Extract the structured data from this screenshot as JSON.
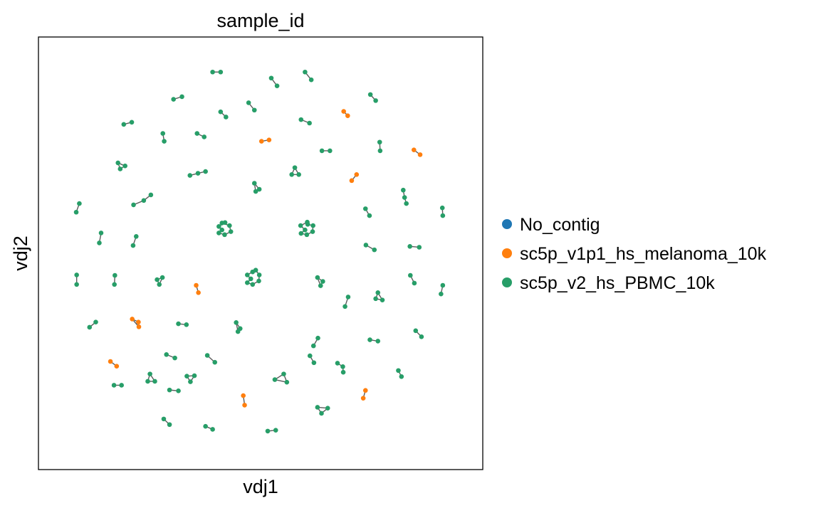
{
  "chart_data": {
    "type": "scatter",
    "title": "sample_id",
    "xlabel": "vdj1",
    "ylabel": "vdj2",
    "xlim": [
      0,
      100
    ],
    "ylim": [
      0,
      100
    ],
    "grid": false,
    "ticks": "none",
    "legend_placement": "right",
    "legend": [
      {
        "name": "No_contig",
        "color": "#1f77b4"
      },
      {
        "name": "sc5p_v1p1_hs_melanoma_10k",
        "color": "#ff7f0e"
      },
      {
        "name": "sc5p_v2_hs_PBMC_10k",
        "color": "#279e68"
      }
    ],
    "series": [
      {
        "name": "No_contig",
        "color": "#1f77b4",
        "points": []
      },
      {
        "name": "sc5p_v1p1_hs_melanoma_10k",
        "color": "#ff7f0e",
        "points": [
          [
            68.7,
            82.8
          ],
          [
            69.6,
            81.8
          ],
          [
            50.2,
            75.9
          ],
          [
            51.9,
            76.2
          ],
          [
            71.6,
            68.2
          ],
          [
            70.5,
            66.8
          ],
          [
            84.5,
            73.9
          ],
          [
            85.9,
            72.8
          ],
          [
            35.5,
            42.6
          ],
          [
            36.0,
            40.9
          ],
          [
            21.1,
            34.8
          ],
          [
            22.5,
            34.1
          ],
          [
            22.6,
            33.0
          ],
          [
            16.2,
            25.0
          ],
          [
            17.6,
            23.9
          ],
          [
            46.1,
            17.1
          ],
          [
            46.4,
            14.9
          ],
          [
            73.6,
            18.3
          ],
          [
            73.1,
            16.5
          ]
        ]
      },
      {
        "name": "sc5p_v2_hs_PBMC_10k",
        "color": "#279e68",
        "points": [
          [
            39.2,
            91.9
          ],
          [
            41.0,
            91.9
          ],
          [
            52.4,
            90.5
          ],
          [
            53.7,
            88.7
          ],
          [
            60.0,
            91.9
          ],
          [
            61.4,
            90.1
          ],
          [
            30.4,
            85.6
          ],
          [
            32.3,
            86.2
          ],
          [
            47.3,
            84.8
          ],
          [
            48.6,
            83.1
          ],
          [
            41.0,
            82.7
          ],
          [
            42.2,
            81.5
          ],
          [
            59.1,
            80.9
          ],
          [
            61.0,
            80.1
          ],
          [
            74.7,
            86.7
          ],
          [
            75.9,
            85.3
          ],
          [
            19.2,
            79.8
          ],
          [
            21.0,
            80.3
          ],
          [
            28.0,
            77.7
          ],
          [
            28.3,
            75.9
          ],
          [
            35.7,
            77.7
          ],
          [
            37.3,
            76.9
          ],
          [
            63.8,
            73.7
          ],
          [
            65.6,
            73.7
          ],
          [
            76.8,
            75.7
          ],
          [
            76.9,
            73.7
          ],
          [
            17.9,
            70.9
          ],
          [
            18.4,
            69.5
          ],
          [
            19.5,
            70.2
          ],
          [
            34.1,
            68.0
          ],
          [
            35.9,
            68.5
          ],
          [
            37.6,
            68.9
          ],
          [
            57.7,
            69.8
          ],
          [
            57.0,
            68.2
          ],
          [
            58.6,
            68.2
          ],
          [
            48.6,
            66.2
          ],
          [
            49.7,
            64.8
          ],
          [
            48.9,
            64.3
          ],
          [
            82.1,
            64.6
          ],
          [
            82.4,
            62.9
          ],
          [
            82.8,
            61.5
          ],
          [
            21.4,
            61.2
          ],
          [
            23.7,
            62.2
          ],
          [
            25.3,
            63.5
          ],
          [
            9.2,
            61.5
          ],
          [
            8.5,
            59.5
          ],
          [
            73.6,
            60.3
          ],
          [
            74.5,
            58.7
          ],
          [
            90.9,
            60.5
          ],
          [
            91.0,
            58.7
          ],
          [
            14.1,
            54.7
          ],
          [
            13.7,
            52.4
          ],
          [
            22.0,
            53.9
          ],
          [
            21.3,
            51.8
          ],
          [
            73.7,
            51.9
          ],
          [
            75.6,
            50.8
          ],
          [
            83.6,
            51.6
          ],
          [
            85.7,
            51.4
          ],
          [
            8.6,
            45.0
          ],
          [
            8.6,
            42.8
          ],
          [
            17.2,
            44.9
          ],
          [
            17.1,
            42.8
          ],
          [
            26.7,
            43.9
          ],
          [
            27.9,
            44.4
          ],
          [
            27.2,
            42.8
          ],
          [
            62.8,
            44.4
          ],
          [
            64.0,
            43.5
          ],
          [
            63.5,
            42.5
          ],
          [
            69.7,
            39.9
          ],
          [
            69.0,
            37.7
          ],
          [
            76.4,
            40.9
          ],
          [
            75.9,
            39.5
          ],
          [
            77.4,
            39.2
          ],
          [
            83.7,
            44.9
          ],
          [
            84.6,
            43.1
          ],
          [
            91.0,
            42.6
          ],
          [
            90.6,
            40.6
          ],
          [
            11.5,
            32.9
          ],
          [
            12.9,
            34.1
          ],
          [
            31.5,
            33.7
          ],
          [
            33.3,
            33.5
          ],
          [
            44.5,
            34.0
          ],
          [
            45.4,
            32.6
          ],
          [
            44.9,
            31.9
          ],
          [
            62.9,
            30.4
          ],
          [
            61.9,
            28.6
          ],
          [
            74.6,
            30.0
          ],
          [
            76.4,
            29.7
          ],
          [
            84.9,
            32.1
          ],
          [
            86.2,
            30.7
          ],
          [
            28.8,
            26.6
          ],
          [
            30.7,
            25.8
          ],
          [
            38.0,
            26.4
          ],
          [
            39.7,
            24.8
          ],
          [
            61.1,
            26.3
          ],
          [
            62.0,
            24.7
          ],
          [
            67.3,
            24.6
          ],
          [
            68.5,
            23.8
          ],
          [
            68.6,
            22.5
          ],
          [
            81.0,
            22.9
          ],
          [
            81.7,
            21.5
          ],
          [
            25.1,
            22.1
          ],
          [
            24.6,
            20.4
          ],
          [
            26.2,
            20.4
          ],
          [
            33.4,
            21.6
          ],
          [
            34.2,
            20.3
          ],
          [
            35.1,
            21.7
          ],
          [
            55.2,
            22.1
          ],
          [
            53.2,
            20.8
          ],
          [
            55.9,
            20.2
          ],
          [
            17.0,
            19.5
          ],
          [
            18.7,
            19.5
          ],
          [
            29.5,
            18.4
          ],
          [
            31.5,
            18.2
          ],
          [
            62.8,
            14.4
          ],
          [
            63.7,
            13.0
          ],
          [
            65.1,
            14.2
          ],
          [
            28.2,
            11.7
          ],
          [
            29.5,
            10.4
          ],
          [
            37.6,
            10.0
          ],
          [
            39.2,
            9.3
          ],
          [
            51.6,
            8.9
          ],
          [
            53.4,
            9.1
          ],
          [
            42.0,
            57.1
          ],
          [
            40.6,
            56.2
          ],
          [
            41.3,
            55.4
          ],
          [
            40.6,
            54.7
          ],
          [
            41.9,
            54.3
          ],
          [
            43.3,
            55.0
          ],
          [
            43.0,
            56.4
          ],
          [
            41.3,
            57.0
          ],
          [
            60.5,
            57.2
          ],
          [
            59.0,
            56.4
          ],
          [
            60.0,
            55.4
          ],
          [
            59.1,
            54.6
          ],
          [
            60.4,
            54.3
          ],
          [
            61.7,
            55.0
          ],
          [
            61.8,
            56.4
          ],
          [
            60.6,
            56.7
          ],
          [
            48.2,
            45.7
          ],
          [
            47.0,
            45.0
          ],
          [
            47.8,
            44.1
          ],
          [
            47.0,
            43.2
          ],
          [
            48.2,
            42.8
          ],
          [
            49.6,
            43.6
          ],
          [
            49.7,
            45.0
          ],
          [
            48.9,
            46.1
          ]
        ]
      }
    ],
    "edges": [
      [
        39.2,
        91.9,
        41.0,
        91.9
      ],
      [
        52.4,
        90.5,
        53.7,
        88.7
      ],
      [
        60.0,
        91.9,
        61.4,
        90.1
      ],
      [
        30.4,
        85.6,
        32.3,
        86.2
      ],
      [
        47.3,
        84.8,
        48.6,
        83.1
      ],
      [
        41.0,
        82.7,
        42.2,
        81.5
      ],
      [
        59.1,
        80.9,
        61.0,
        80.1
      ],
      [
        74.7,
        86.7,
        75.9,
        85.3
      ],
      [
        19.2,
        79.8,
        21.0,
        80.3
      ],
      [
        28.0,
        77.7,
        28.3,
        75.9
      ],
      [
        35.7,
        77.7,
        37.3,
        76.9
      ],
      [
        63.8,
        73.7,
        65.6,
        73.7
      ],
      [
        76.8,
        75.7,
        76.9,
        73.7
      ],
      [
        68.7,
        82.8,
        69.6,
        81.8
      ],
      [
        50.2,
        75.9,
        51.9,
        76.2
      ],
      [
        71.6,
        68.2,
        70.5,
        66.8
      ],
      [
        84.5,
        73.9,
        85.9,
        72.8
      ],
      [
        17.9,
        70.9,
        18.4,
        69.5
      ],
      [
        18.4,
        69.5,
        19.5,
        70.2
      ],
      [
        19.5,
        70.2,
        17.9,
        70.9
      ],
      [
        34.1,
        68.0,
        35.9,
        68.5
      ],
      [
        35.9,
        68.5,
        37.6,
        68.9
      ],
      [
        57.7,
        69.8,
        57.0,
        68.2
      ],
      [
        57.0,
        68.2,
        58.6,
        68.2
      ],
      [
        58.6,
        68.2,
        57.7,
        69.8
      ],
      [
        48.6,
        66.2,
        48.9,
        64.3
      ],
      [
        48.9,
        64.3,
        49.7,
        64.8
      ],
      [
        49.7,
        64.8,
        48.6,
        66.2
      ],
      [
        82.1,
        64.6,
        82.4,
        62.9
      ],
      [
        82.4,
        62.9,
        82.8,
        61.5
      ],
      [
        21.4,
        61.2,
        23.7,
        62.2
      ],
      [
        23.7,
        62.2,
        25.3,
        63.5
      ],
      [
        9.2,
        61.5,
        8.5,
        59.5
      ],
      [
        73.6,
        60.3,
        74.5,
        58.7
      ],
      [
        90.9,
        60.5,
        91.0,
        58.7
      ],
      [
        14.1,
        54.7,
        13.7,
        52.4
      ],
      [
        22.0,
        53.9,
        21.3,
        51.8
      ],
      [
        73.7,
        51.9,
        75.6,
        50.8
      ],
      [
        83.6,
        51.6,
        85.7,
        51.4
      ],
      [
        8.6,
        45.0,
        8.6,
        42.8
      ],
      [
        17.2,
        44.9,
        17.1,
        42.8
      ],
      [
        26.7,
        43.9,
        27.9,
        44.4
      ],
      [
        27.9,
        44.4,
        27.2,
        42.8
      ],
      [
        27.2,
        42.8,
        26.7,
        43.9
      ],
      [
        62.8,
        44.4,
        64.0,
        43.5
      ],
      [
        64.0,
        43.5,
        63.5,
        42.5
      ],
      [
        63.5,
        42.5,
        62.8,
        44.4
      ],
      [
        69.7,
        39.9,
        69.0,
        37.7
      ],
      [
        76.4,
        40.9,
        75.9,
        39.5
      ],
      [
        75.9,
        39.5,
        77.4,
        39.2
      ],
      [
        77.4,
        39.2,
        76.4,
        40.9
      ],
      [
        83.7,
        44.9,
        84.6,
        43.1
      ],
      [
        91.0,
        42.6,
        90.6,
        40.6
      ],
      [
        35.5,
        42.6,
        36.0,
        40.9
      ],
      [
        21.1,
        34.8,
        22.5,
        34.1
      ],
      [
        22.5,
        34.1,
        22.6,
        33.0
      ],
      [
        22.6,
        33.0,
        21.1,
        34.8
      ],
      [
        11.5,
        32.9,
        12.9,
        34.1
      ],
      [
        31.5,
        33.7,
        33.3,
        33.5
      ],
      [
        44.5,
        34.0,
        45.4,
        32.6
      ],
      [
        45.4,
        32.6,
        44.9,
        31.9
      ],
      [
        44.9,
        31.9,
        44.5,
        34.0
      ],
      [
        62.9,
        30.4,
        61.9,
        28.6
      ],
      [
        74.6,
        30.0,
        76.4,
        29.7
      ],
      [
        84.9,
        32.1,
        86.2,
        30.7
      ],
      [
        28.8,
        26.6,
        30.7,
        25.8
      ],
      [
        38.0,
        26.4,
        39.7,
        24.8
      ],
      [
        61.1,
        26.3,
        62.0,
        24.7
      ],
      [
        67.3,
        24.6,
        68.5,
        23.8
      ],
      [
        68.5,
        23.8,
        68.6,
        22.5
      ],
      [
        81.0,
        22.9,
        81.7,
        21.5
      ],
      [
        25.1,
        22.1,
        24.6,
        20.4
      ],
      [
        24.6,
        20.4,
        26.2,
        20.4
      ],
      [
        26.2,
        20.4,
        25.1,
        22.1
      ],
      [
        33.4,
        21.6,
        34.2,
        20.3
      ],
      [
        34.2,
        20.3,
        35.1,
        21.7
      ],
      [
        35.1,
        21.7,
        33.4,
        21.6
      ],
      [
        55.2,
        22.1,
        53.2,
        20.8
      ],
      [
        53.2,
        20.8,
        55.9,
        20.2
      ],
      [
        55.9,
        20.2,
        55.2,
        22.1
      ],
      [
        16.2,
        25.0,
        17.6,
        23.9
      ],
      [
        17.0,
        19.5,
        18.7,
        19.5
      ],
      [
        29.5,
        18.4,
        31.5,
        18.2
      ],
      [
        62.8,
        14.4,
        63.7,
        13.0
      ],
      [
        63.7,
        13.0,
        65.1,
        14.2
      ],
      [
        65.1,
        14.2,
        62.8,
        14.4
      ],
      [
        46.1,
        17.1,
        46.4,
        14.9
      ],
      [
        73.6,
        18.3,
        73.1,
        16.5
      ],
      [
        28.2,
        11.7,
        29.5,
        10.4
      ],
      [
        37.6,
        10.0,
        39.2,
        9.3
      ],
      [
        51.6,
        8.9,
        53.4,
        9.1
      ],
      [
        42.0,
        57.1,
        40.6,
        56.2
      ],
      [
        40.6,
        56.2,
        41.3,
        55.4
      ],
      [
        41.3,
        55.4,
        40.6,
        54.7
      ],
      [
        40.6,
        54.7,
        41.9,
        54.3
      ],
      [
        41.9,
        54.3,
        43.3,
        55.0
      ],
      [
        43.3,
        55.0,
        43.0,
        56.4
      ],
      [
        43.0,
        56.4,
        41.3,
        57.0
      ],
      [
        41.3,
        57.0,
        42.0,
        57.1
      ],
      [
        60.5,
        57.2,
        59.0,
        56.4
      ],
      [
        59.0,
        56.4,
        60.0,
        55.4
      ],
      [
        60.0,
        55.4,
        59.1,
        54.6
      ],
      [
        59.1,
        54.6,
        60.4,
        54.3
      ],
      [
        60.4,
        54.3,
        61.7,
        55.0
      ],
      [
        61.7,
        55.0,
        61.8,
        56.4
      ],
      [
        61.8,
        56.4,
        60.6,
        56.7
      ],
      [
        60.6,
        56.7,
        60.5,
        57.2
      ],
      [
        48.2,
        45.7,
        47.0,
        45.0
      ],
      [
        47.0,
        45.0,
        47.8,
        44.1
      ],
      [
        47.8,
        44.1,
        47.0,
        43.2
      ],
      [
        47.0,
        43.2,
        48.2,
        42.8
      ],
      [
        48.2,
        42.8,
        49.6,
        43.6
      ],
      [
        49.6,
        43.6,
        49.7,
        45.0
      ],
      [
        49.7,
        45.0,
        48.9,
        46.1
      ],
      [
        48.9,
        46.1,
        48.2,
        45.7
      ]
    ]
  }
}
